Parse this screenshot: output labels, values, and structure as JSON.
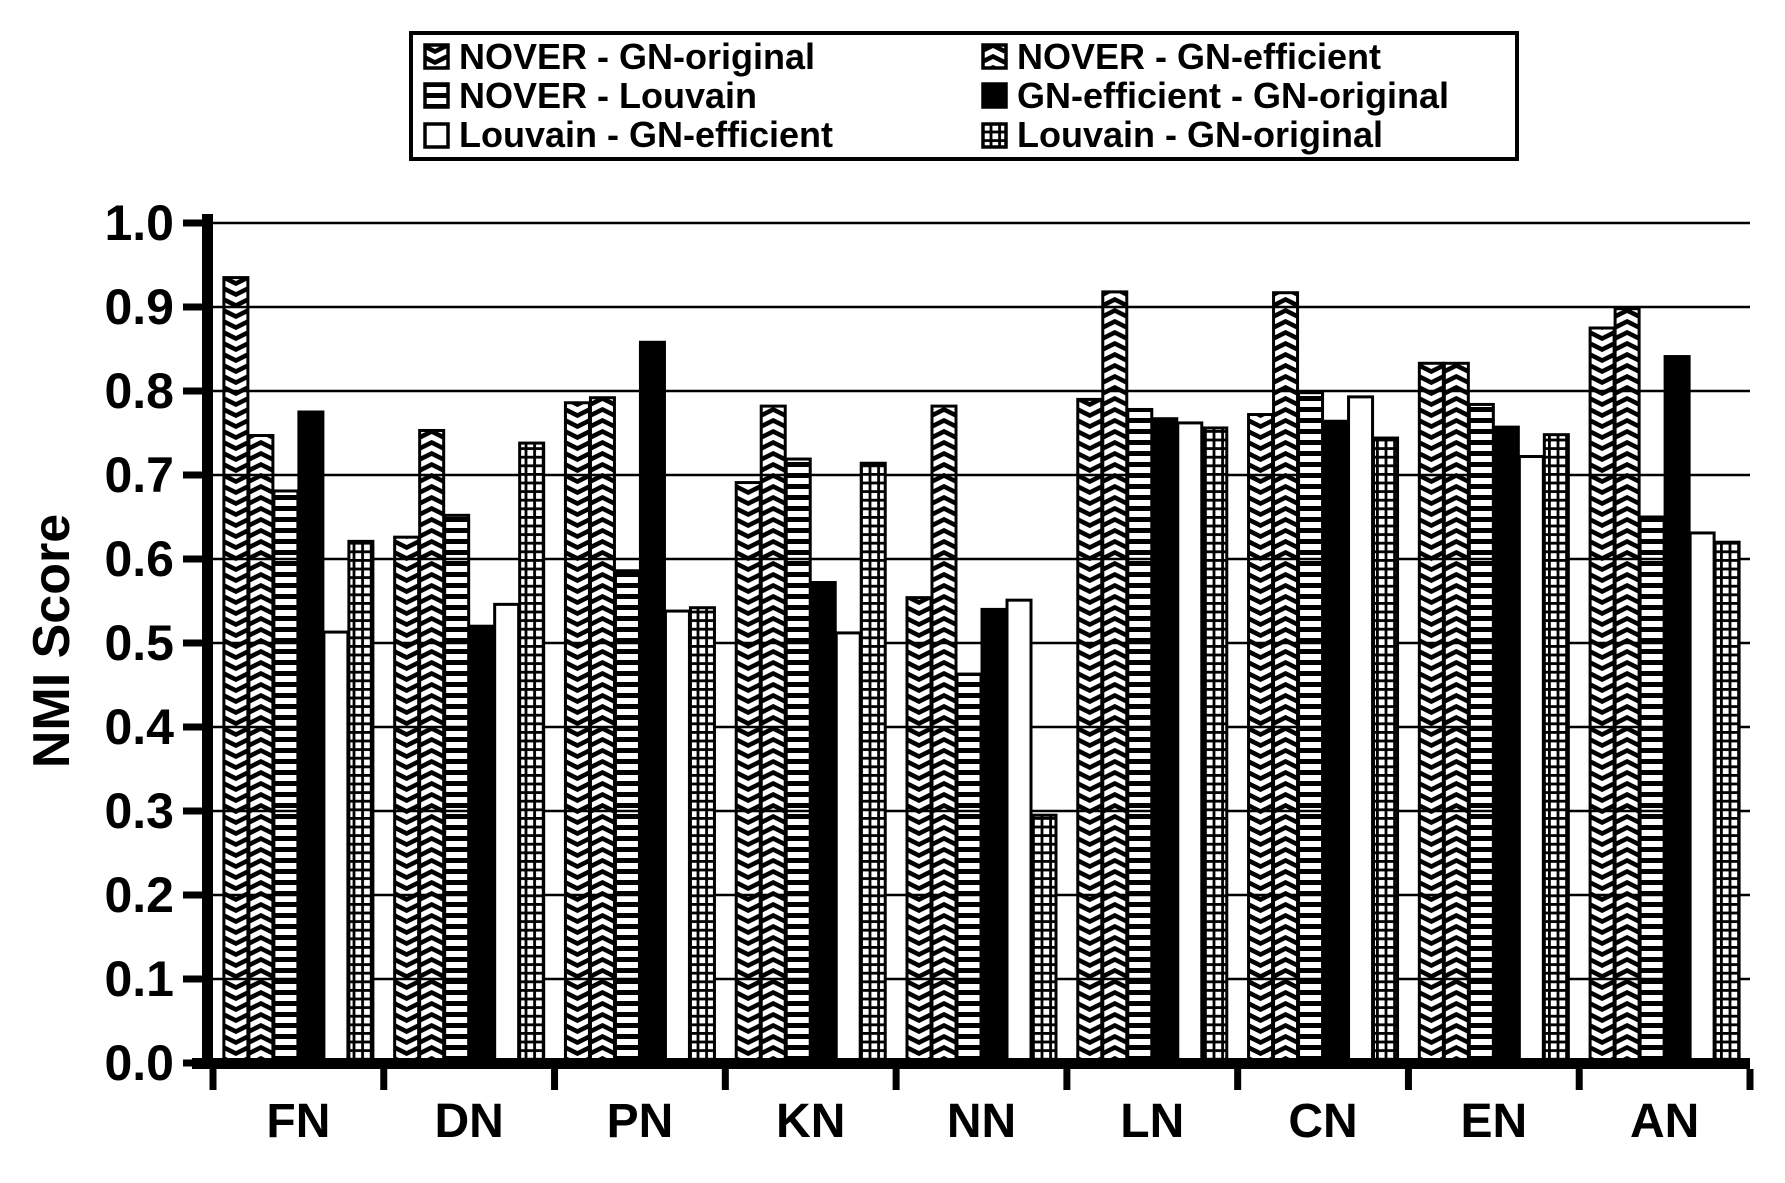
{
  "chart_data": {
    "type": "bar",
    "title": "",
    "xlabel": "",
    "ylabel": "NMI Score",
    "ylim": [
      0.0,
      1.0
    ],
    "ytick_step": 0.1,
    "yticks": [
      "1.0",
      "0.9",
      "0.8",
      "0.7",
      "0.6",
      "0.5",
      "0.4",
      "0.3",
      "0.2",
      "0.1",
      "0.0"
    ],
    "categories": [
      "FN",
      "DN",
      "PN",
      "KN",
      "NN",
      "LN",
      "CN",
      "EN",
      "AN"
    ],
    "grid": "horizontal-only",
    "legend_position": "top",
    "colors": {
      "foreground": "#000000",
      "background": "#ffffff"
    },
    "series": [
      {
        "name": "NOVER - GN-original",
        "pattern": "chevron-down-hatch",
        "values": [
          0.935,
          0.626,
          0.786,
          0.691,
          0.554,
          0.79,
          0.772,
          0.833,
          0.875
        ]
      },
      {
        "name": "NOVER - GN-efficient",
        "pattern": "chevron-up-hatch",
        "values": [
          0.747,
          0.753,
          0.792,
          0.782,
          0.782,
          0.918,
          0.917,
          0.833,
          0.898
        ]
      },
      {
        "name": "NOVER - Louvain",
        "pattern": "horizontal-lines",
        "values": [
          0.681,
          0.652,
          0.586,
          0.719,
          0.463,
          0.778,
          0.798,
          0.784,
          0.65
        ]
      },
      {
        "name": "GN-efficient - GN-original",
        "pattern": "solid-black",
        "values": [
          0.775,
          0.52,
          0.858,
          0.572,
          0.54,
          0.767,
          0.764,
          0.757,
          0.841
        ]
      },
      {
        "name": "Louvain - GN-efficient",
        "pattern": "open-white",
        "values": [
          0.513,
          0.546,
          0.538,
          0.512,
          0.551,
          0.762,
          0.793,
          0.722,
          0.631
        ]
      },
      {
        "name": "Louvain - GN-original",
        "pattern": "grid-pane",
        "values": [
          0.621,
          0.738,
          0.542,
          0.714,
          0.295,
          0.756,
          0.744,
          0.748,
          0.62
        ]
      }
    ],
    "legend_order": [
      0,
      1,
      2,
      3,
      4,
      5
    ]
  }
}
